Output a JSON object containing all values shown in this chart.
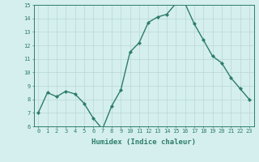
{
  "x": [
    0,
    1,
    2,
    3,
    4,
    5,
    6,
    7,
    8,
    9,
    10,
    11,
    12,
    13,
    14,
    15,
    16,
    17,
    18,
    19,
    20,
    21,
    22,
    23
  ],
  "y": [
    7.0,
    8.5,
    8.2,
    8.6,
    8.4,
    7.7,
    6.6,
    5.8,
    7.5,
    8.7,
    11.5,
    12.2,
    13.7,
    14.1,
    14.3,
    15.1,
    15.1,
    13.6,
    12.4,
    11.2,
    10.7,
    9.6,
    8.8,
    8.0
  ],
  "xlabel": "Humidex (Indice chaleur)",
  "ylim": [
    6,
    15
  ],
  "xlim": [
    -0.5,
    23.5
  ],
  "line_color": "#2d7d6b",
  "marker": "D",
  "marker_size": 2.0,
  "bg_color": "#d5efee",
  "grid_color": "#b8d8d5",
  "axis_color": "#2d7d6b",
  "tick_color": "#2d7d6b",
  "label_color": "#2d7d6b",
  "yticks": [
    6,
    7,
    8,
    9,
    10,
    11,
    12,
    13,
    14,
    15
  ],
  "xticks": [
    0,
    1,
    2,
    3,
    4,
    5,
    6,
    7,
    8,
    9,
    10,
    11,
    12,
    13,
    14,
    15,
    16,
    17,
    18,
    19,
    20,
    21,
    22,
    23
  ],
  "tick_fontsize": 5.0,
  "xlabel_fontsize": 6.5
}
